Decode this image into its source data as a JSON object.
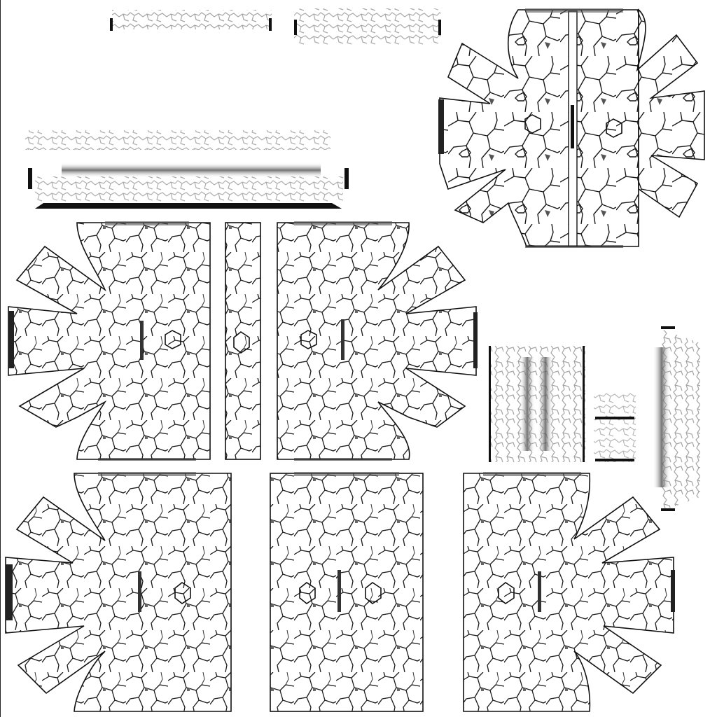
{
  "texture_atlas": {
    "background": "#ffffff",
    "outline_color": "#111111",
    "crack_color": "#1a1a1a",
    "grime_color": "#555555",
    "fade_color": "#9a9a9a",
    "islands": [
      {
        "name": "top-left-strip",
        "kind": "strip"
      },
      {
        "name": "top-middle-strip",
        "kind": "strip"
      },
      {
        "name": "top-right-flower",
        "kind": "flower",
        "split": true
      },
      {
        "name": "long-strip-group",
        "kind": "strip"
      },
      {
        "name": "middle-left-flower",
        "kind": "flower"
      },
      {
        "name": "middle-narrow-column",
        "kind": "column"
      },
      {
        "name": "middle-center-flower",
        "kind": "flower"
      },
      {
        "name": "right-column-group",
        "kind": "strip"
      },
      {
        "name": "far-right-strip",
        "kind": "strip"
      },
      {
        "name": "bottom-left-flower",
        "kind": "flower"
      },
      {
        "name": "bottom-center-panel",
        "kind": "panel"
      },
      {
        "name": "bottom-right-flower",
        "kind": "flower"
      }
    ]
  }
}
